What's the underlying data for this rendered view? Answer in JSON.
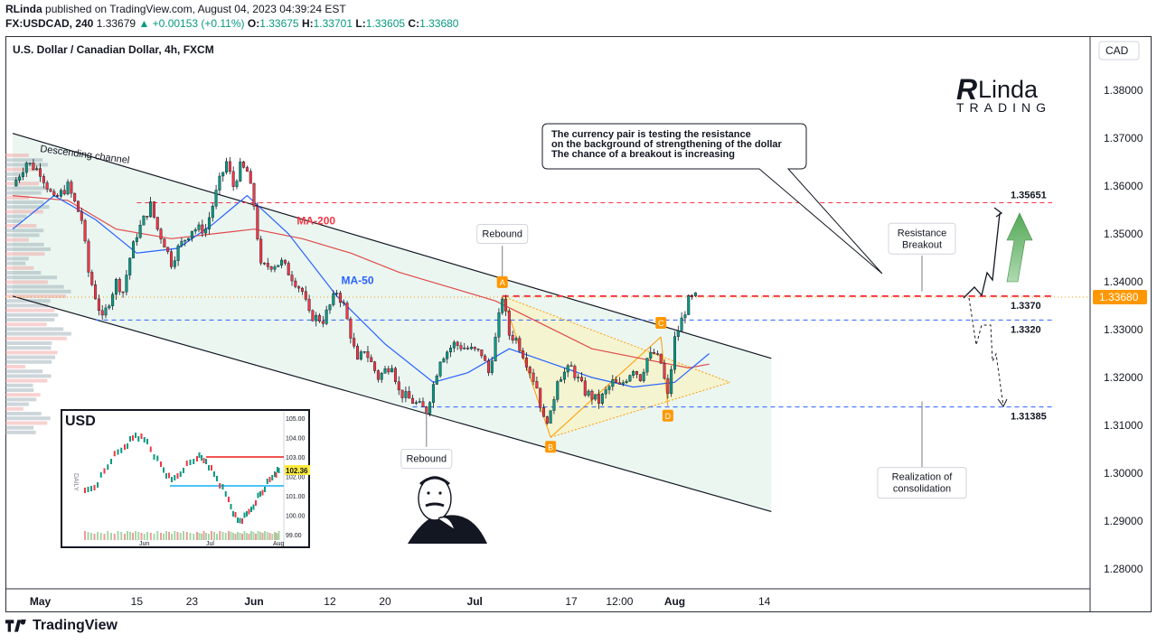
{
  "header": {
    "publisher": "RLinda",
    "published_text": "published on TradingView.com, August 04, 2023 04:39:24 EST",
    "symbol": "FX:USDCAD, 240",
    "last": "1.33679",
    "change": "+0.00153 (+0.11%)",
    "open_label": "O:",
    "open": "1.33675",
    "high_label": "H:",
    "high": "1.33701",
    "low_label": "L:",
    "low": "1.33605",
    "close_label": "C:",
    "close": "1.33680"
  },
  "footer": {
    "brand": "TradingView"
  },
  "brand_logo": {
    "main": "RLinda",
    "sub": "TRADING"
  },
  "chart_data": {
    "type": "candlestick",
    "title": "U.S. Dollar / Canadian Dollar, 4h, FXCM",
    "currency_label": "CAD",
    "ylim": [
      1.275,
      1.387
    ],
    "yticks": [
      1.28,
      1.29,
      1.3,
      1.31,
      1.32,
      1.33,
      1.34,
      1.35,
      1.36,
      1.37,
      1.38
    ],
    "ytick_labels": [
      "1.28000",
      "1.29000",
      "1.30000",
      "1.31000",
      "1.32000",
      "1.33000",
      "1.34000",
      "1.35000",
      "1.36000",
      "1.37000",
      "1.38000"
    ],
    "xticks": [
      {
        "label": "May",
        "date": "2023-05-01",
        "bold": true
      },
      {
        "label": "15",
        "date": "2023-05-15",
        "bold": false
      },
      {
        "label": "23",
        "date": "2023-05-23",
        "bold": false
      },
      {
        "label": "Jun",
        "date": "2023-06-01",
        "bold": true
      },
      {
        "label": "12",
        "date": "2023-06-12",
        "bold": false
      },
      {
        "label": "20",
        "date": "2023-06-20",
        "bold": false
      },
      {
        "label": "Jul",
        "date": "2023-07-03",
        "bold": true
      },
      {
        "label": "17",
        "date": "2023-07-17",
        "bold": false
      },
      {
        "label": "12:00",
        "date": "2023-07-24",
        "bold": false
      },
      {
        "label": "Aug",
        "date": "2023-08-01",
        "bold": true
      },
      {
        "label": "14",
        "date": "2023-08-14",
        "bold": false
      }
    ],
    "price_path": [
      [
        "2023-04-27",
        1.36
      ],
      [
        "2023-04-29",
        1.365
      ],
      [
        "2023-05-01",
        1.363
      ],
      [
        "2023-05-03",
        1.357
      ],
      [
        "2023-05-05",
        1.36
      ],
      [
        "2023-05-07",
        1.353
      ],
      [
        "2023-05-08",
        1.342
      ],
      [
        "2023-05-09",
        1.337
      ],
      [
        "2023-05-10",
        1.332
      ],
      [
        "2023-05-11",
        1.336
      ],
      [
        "2023-05-12",
        1.34
      ],
      [
        "2023-05-13",
        1.338
      ],
      [
        "2023-05-14",
        1.345
      ],
      [
        "2023-05-15",
        1.35
      ],
      [
        "2023-05-17",
        1.356
      ],
      [
        "2023-05-18",
        1.351
      ],
      [
        "2023-05-19",
        1.348
      ],
      [
        "2023-05-20",
        1.344
      ],
      [
        "2023-05-21",
        1.347
      ],
      [
        "2023-05-23",
        1.351
      ],
      [
        "2023-05-25",
        1.351
      ],
      [
        "2023-05-26",
        1.356
      ],
      [
        "2023-05-27",
        1.361
      ],
      [
        "2023-05-28",
        1.365
      ],
      [
        "2023-05-29",
        1.36
      ],
      [
        "2023-05-30",
        1.364
      ],
      [
        "2023-05-31",
        1.363
      ],
      [
        "2023-06-01",
        1.356
      ],
      [
        "2023-06-02",
        1.343
      ],
      [
        "2023-06-05",
        1.344
      ],
      [
        "2023-06-07",
        1.34
      ],
      [
        "2023-06-08",
        1.338
      ],
      [
        "2023-06-09",
        1.333
      ],
      [
        "2023-06-11",
        1.332
      ],
      [
        "2023-06-13",
        1.338
      ],
      [
        "2023-06-14",
        1.335
      ],
      [
        "2023-06-15",
        1.329
      ],
      [
        "2023-06-16",
        1.323
      ],
      [
        "2023-06-17",
        1.326
      ],
      [
        "2023-06-19",
        1.32
      ],
      [
        "2023-06-21",
        1.323
      ],
      [
        "2023-06-22",
        1.317
      ],
      [
        "2023-06-24",
        1.315
      ],
      [
        "2023-06-26",
        1.313
      ],
      [
        "2023-06-28",
        1.324
      ],
      [
        "2023-06-30",
        1.327
      ],
      [
        "2023-07-02",
        1.326
      ],
      [
        "2023-07-04",
        1.325
      ],
      [
        "2023-07-05",
        1.321
      ],
      [
        "2023-07-06",
        1.328
      ],
      [
        "2023-07-07",
        1.337
      ],
      [
        "2023-07-08",
        1.329
      ],
      [
        "2023-07-09",
        1.328
      ],
      [
        "2023-07-10",
        1.325
      ],
      [
        "2023-07-12",
        1.318
      ],
      [
        "2023-07-13",
        1.311
      ],
      [
        "2023-07-14",
        1.312
      ],
      [
        "2023-07-15",
        1.32
      ],
      [
        "2023-07-17",
        1.322
      ],
      [
        "2023-07-19",
        1.317
      ],
      [
        "2023-07-21",
        1.315
      ],
      [
        "2023-07-23",
        1.319
      ],
      [
        "2023-07-24",
        1.318
      ],
      [
        "2023-07-26",
        1.322
      ],
      [
        "2023-07-27",
        1.32
      ],
      [
        "2023-07-28",
        1.324
      ],
      [
        "2023-07-29",
        1.325
      ],
      [
        "2023-07-30",
        1.323
      ],
      [
        "2023-07-31",
        1.316
      ],
      [
        "2023-08-01",
        1.328
      ],
      [
        "2023-08-02",
        1.332
      ],
      [
        "2023-08-03",
        1.336
      ],
      [
        "2023-08-04",
        1.3368
      ]
    ],
    "ma200_path": [
      [
        "2023-04-27",
        1.358
      ],
      [
        "2023-05-05",
        1.357
      ],
      [
        "2023-05-12",
        1.351
      ],
      [
        "2023-05-20",
        1.349
      ],
      [
        "2023-05-26",
        1.35
      ],
      [
        "2023-06-01",
        1.351
      ],
      [
        "2023-06-08",
        1.349
      ],
      [
        "2023-06-15",
        1.346
      ],
      [
        "2023-06-22",
        1.342
      ],
      [
        "2023-06-29",
        1.339
      ],
      [
        "2023-07-06",
        1.336
      ],
      [
        "2023-07-13",
        1.331
      ],
      [
        "2023-07-20",
        1.326
      ],
      [
        "2023-07-27",
        1.324
      ],
      [
        "2023-08-03",
        1.322
      ],
      [
        "2023-08-06",
        1.3228
      ]
    ],
    "ma50_path": [
      [
        "2023-04-27",
        1.351
      ],
      [
        "2023-05-03",
        1.358
      ],
      [
        "2023-05-09",
        1.353
      ],
      [
        "2023-05-15",
        1.346
      ],
      [
        "2023-05-21",
        1.347
      ],
      [
        "2023-05-26",
        1.352
      ],
      [
        "2023-05-31",
        1.358
      ],
      [
        "2023-06-06",
        1.35
      ],
      [
        "2023-06-13",
        1.337
      ],
      [
        "2023-06-20",
        1.327
      ],
      [
        "2023-06-27",
        1.319
      ],
      [
        "2023-07-02",
        1.321
      ],
      [
        "2023-07-08",
        1.326
      ],
      [
        "2023-07-14",
        1.323
      ],
      [
        "2023-07-20",
        1.32
      ],
      [
        "2023-07-26",
        1.318
      ],
      [
        "2023-08-01",
        1.319
      ],
      [
        "2023-08-06",
        1.325
      ]
    ],
    "descending_channel": {
      "label": "Descending channel",
      "upper": [
        [
          "2023-04-27",
          1.371
        ],
        [
          "2023-08-15",
          1.324
        ]
      ],
      "lower": [
        [
          "2023-04-27",
          1.337
        ],
        [
          "2023-08-15",
          1.292
        ]
      ]
    },
    "triangle": {
      "points": {
        "A": [
          "2023-07-07",
          1.337
        ],
        "B": [
          "2023-07-14",
          1.3075
        ],
        "C": [
          "2023-07-30",
          1.3285
        ],
        "D": [
          "2023-07-31",
          1.314
        ]
      },
      "apex": [
        "2023-08-09",
        1.319
      ]
    },
    "levels": [
      {
        "value": 1.35651,
        "label": "1.35651",
        "style": "dashed",
        "color": "#f23645",
        "start": "2023-05-15"
      },
      {
        "value": 1.337,
        "label": "1.3370",
        "style": "dashed-bold",
        "color": "#f23645",
        "start": "2023-07-07"
      },
      {
        "value": 1.332,
        "label": "1.3320",
        "style": "dashed",
        "color": "#2962ff",
        "start": "2023-05-09"
      },
      {
        "value": 1.31385,
        "label": "1.31385",
        "style": "dashed",
        "color": "#2962ff",
        "start": "2023-06-24"
      }
    ],
    "current_price": {
      "value": 1.3368,
      "label": "1.33680"
    },
    "annotations": [
      {
        "text": "MA-200",
        "color": "#f23645",
        "at": [
          "2023-06-10",
          1.352
        ]
      },
      {
        "text": "MA-50",
        "color": "#2962ff",
        "at": [
          "2023-06-16",
          1.3395
        ]
      },
      {
        "text": "Rebound",
        "at": [
          "2023-07-07",
          1.35
        ]
      },
      {
        "text": "Rebound",
        "at": [
          "2023-06-26",
          1.303
        ]
      },
      {
        "text": "Resistance Breakout",
        "at": [
          "2023-08-01",
          1.349
        ]
      },
      {
        "text": "Realization of consolidation",
        "at": [
          "2023-08-01",
          1.298
        ]
      }
    ],
    "callout": {
      "lines": [
        "The currency pair is testing the resistance",
        "on the background of strengthening of the dollar",
        "The chance of a breakout is increasing"
      ]
    },
    "inset": {
      "title": "USD",
      "yticks": [
        "105.00",
        "104.00",
        "103.00",
        "102.00",
        "101.00",
        "100.00",
        "99.00"
      ],
      "xticks": [
        "Jun",
        "Jul",
        "Aug"
      ],
      "last_label": "102.36",
      "side_label": "DAILY"
    }
  },
  "colors": {
    "up": "#089981",
    "down": "#f23645",
    "ma200": "#e04a4a",
    "ma50": "#2962ff",
    "channel_fill": "#e8f5ee",
    "triangle_fill": "#f6f4c8",
    "marker": "#ff9800"
  }
}
